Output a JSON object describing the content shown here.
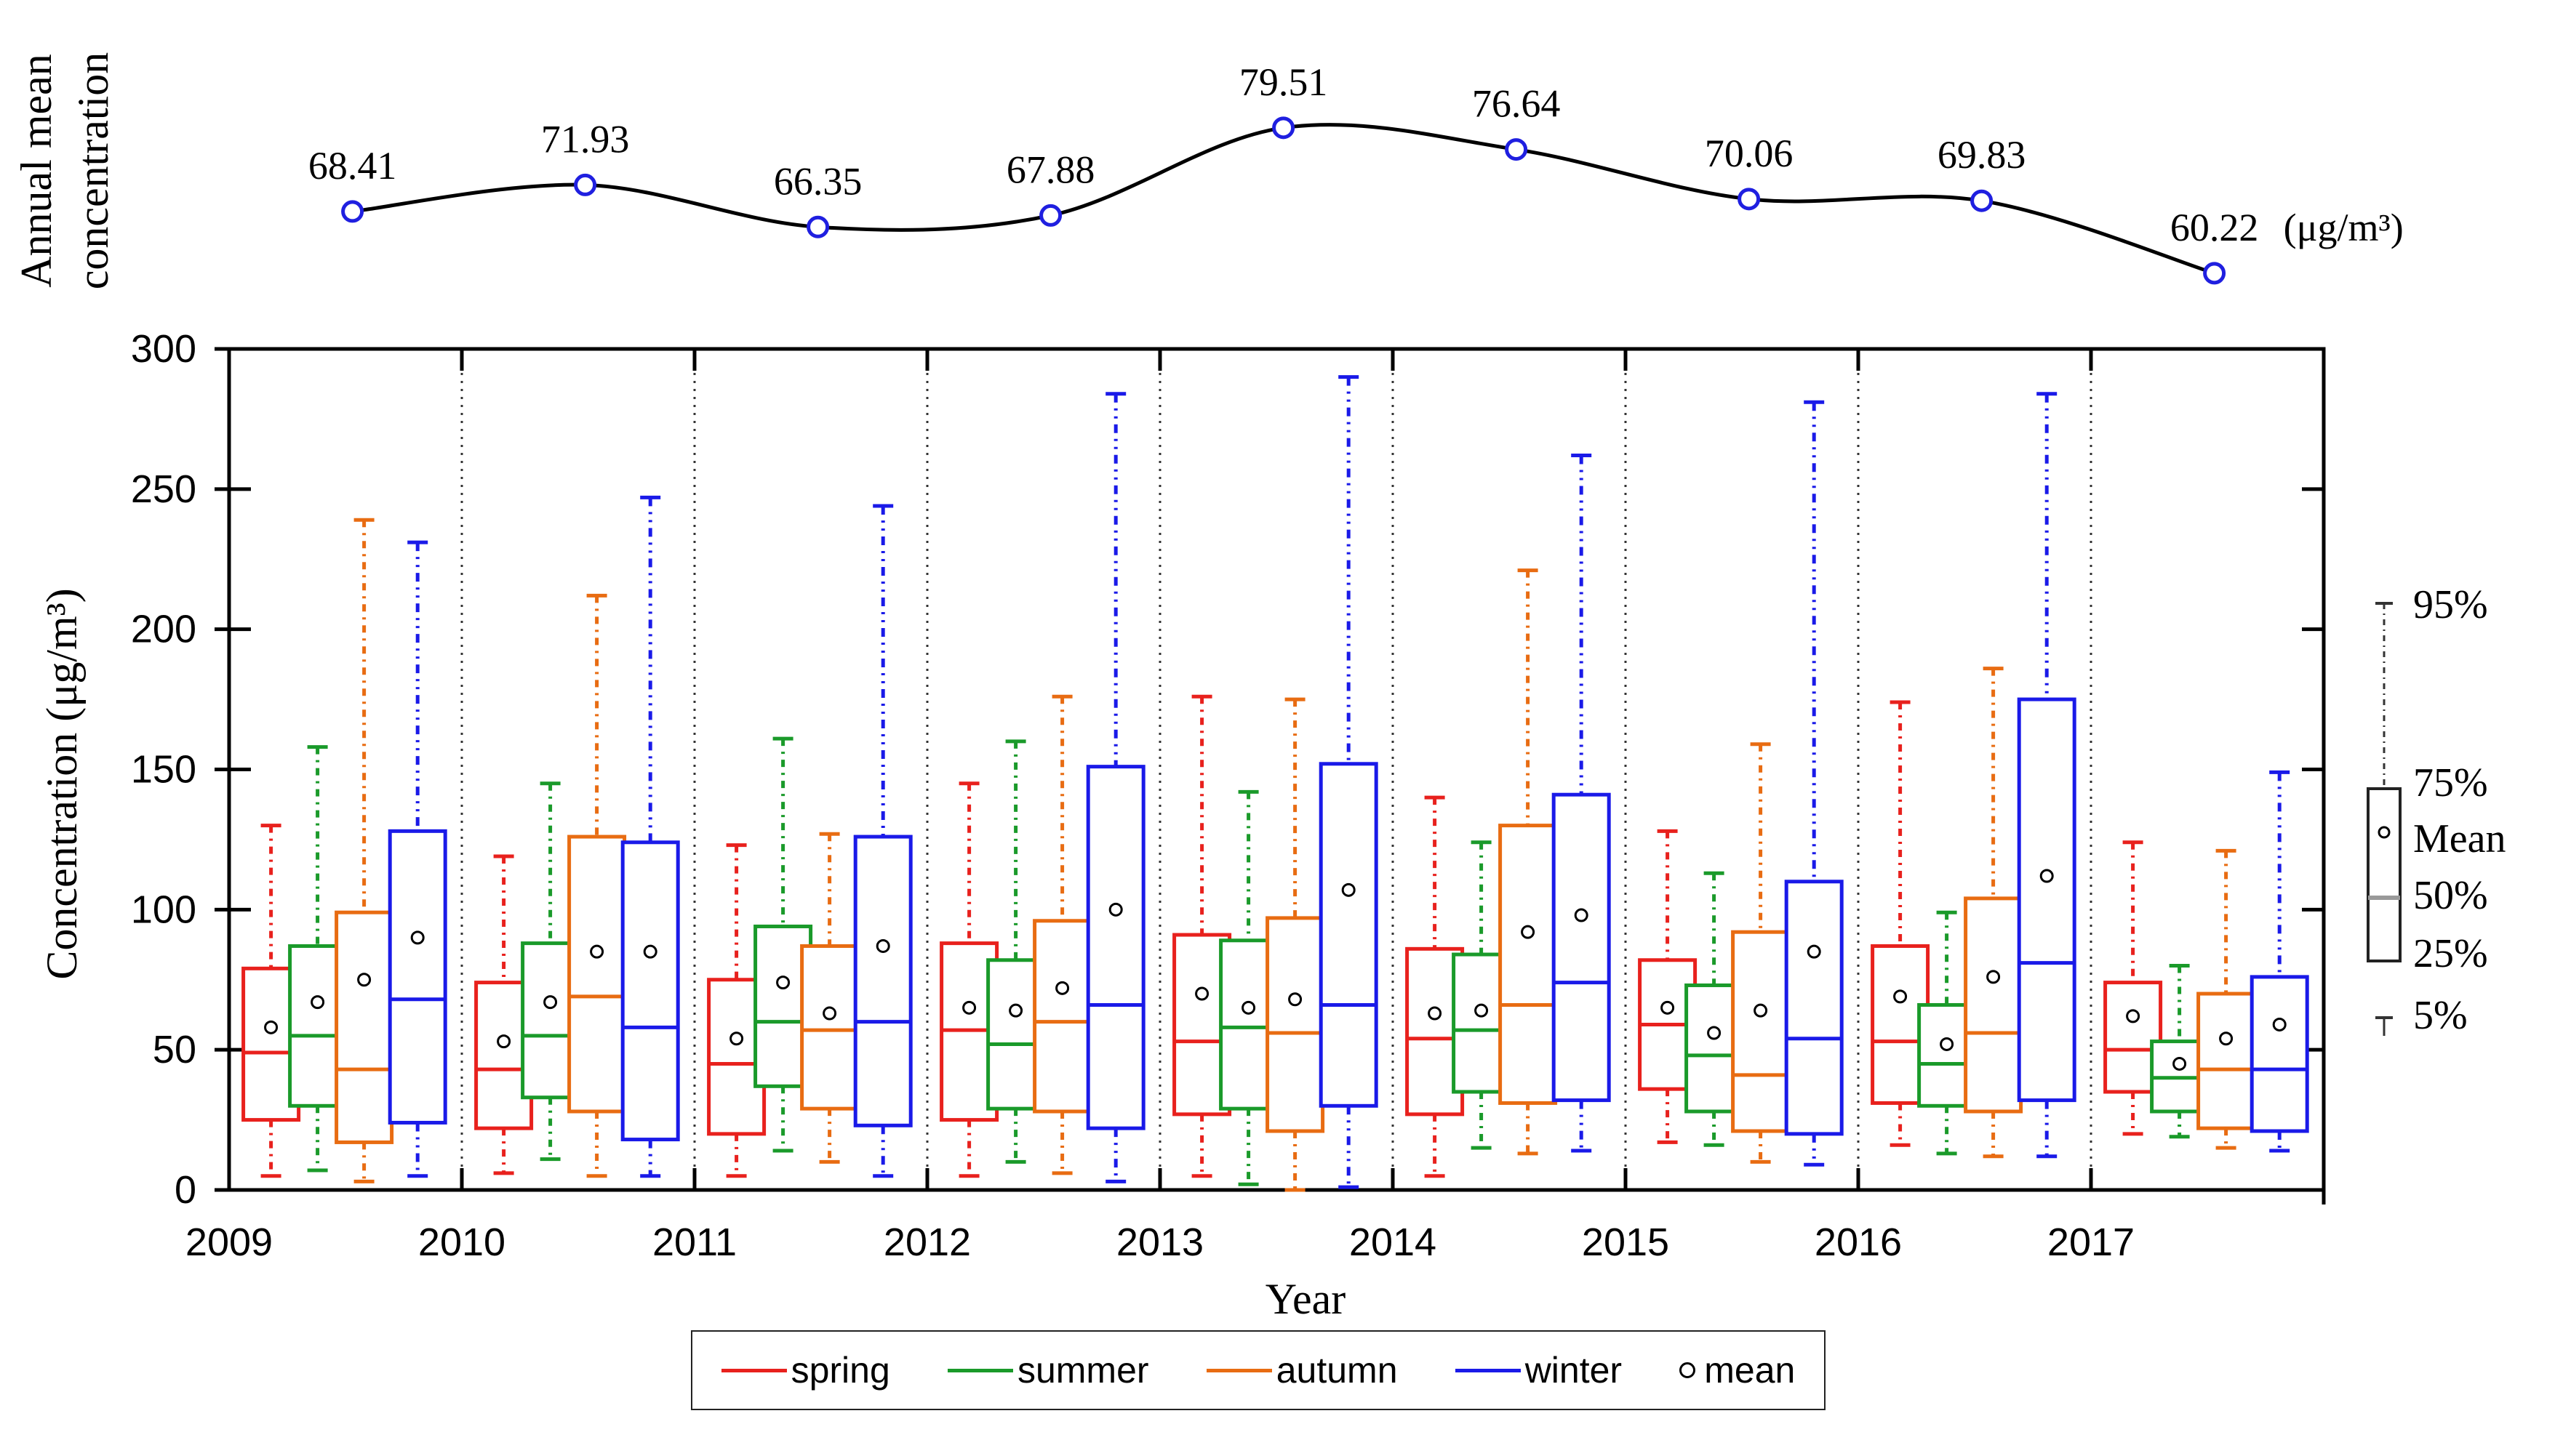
{
  "chart_data": {
    "type": "box",
    "annual_panel": {
      "ylabel": "Annual mean concentration",
      "years": [
        2009,
        2010,
        2011,
        2012,
        2013,
        2014,
        2015,
        2016,
        2017
      ],
      "means": [
        68.41,
        71.93,
        66.35,
        67.88,
        79.51,
        76.64,
        70.06,
        69.83,
        60.22
      ],
      "labels": [
        "68.41",
        "71.93",
        "66.35",
        "67.88",
        "79.51",
        "76.64",
        "70.06",
        "69.83",
        "60.22"
      ],
      "unit_label": "(μg/m³)",
      "line_color": "#000000",
      "marker_color": "#1f1fe0"
    },
    "main_panel": {
      "ylabel": "Concentration (μg/m³)",
      "xlabel": "Year",
      "ylim": [
        0,
        300
      ],
      "yticks": [
        0,
        50,
        100,
        150,
        200,
        250,
        300
      ],
      "ytick_labels": [
        "0",
        "50",
        "100",
        "150",
        "200",
        "250",
        "300"
      ],
      "xlim": [
        2009,
        2018
      ],
      "xticks": [
        2009,
        2010,
        2011,
        2012,
        2013,
        2014,
        2015,
        2016,
        2017
      ],
      "xtick_labels": [
        "2009",
        "2010",
        "2011",
        "2012",
        "2013",
        "2014",
        "2015",
        "2016",
        "2017"
      ],
      "season_positions": [
        0.18,
        0.38,
        0.58,
        0.81
      ]
    },
    "series": [
      {
        "name": "spring",
        "color": "#e8211d",
        "boxes": [
          {
            "p5": 5,
            "q1": 25,
            "median": 49,
            "mean": 58,
            "q3": 79,
            "p95": 130
          },
          {
            "p5": 6,
            "q1": 22,
            "median": 43,
            "mean": 53,
            "q3": 74,
            "p95": 119
          },
          {
            "p5": 5,
            "q1": 20,
            "median": 45,
            "mean": 54,
            "q3": 75,
            "p95": 123
          },
          {
            "p5": 5,
            "q1": 25,
            "median": 57,
            "mean": 65,
            "q3": 88,
            "p95": 145
          },
          {
            "p5": 5,
            "q1": 27,
            "median": 53,
            "mean": 70,
            "q3": 91,
            "p95": 176
          },
          {
            "p5": 5,
            "q1": 27,
            "median": 54,
            "mean": 63,
            "q3": 86,
            "p95": 140
          },
          {
            "p5": 17,
            "q1": 36,
            "median": 59,
            "mean": 65,
            "q3": 82,
            "p95": 128
          },
          {
            "p5": 16,
            "q1": 31,
            "median": 53,
            "mean": 69,
            "q3": 87,
            "p95": 174
          },
          {
            "p5": 20,
            "q1": 35,
            "median": 50,
            "mean": 62,
            "q3": 74,
            "p95": 124
          }
        ]
      },
      {
        "name": "summer",
        "color": "#1a9a2a",
        "boxes": [
          {
            "p5": 7,
            "q1": 30,
            "median": 55,
            "mean": 67,
            "q3": 87,
            "p95": 158
          },
          {
            "p5": 11,
            "q1": 33,
            "median": 55,
            "mean": 67,
            "q3": 88,
            "p95": 145
          },
          {
            "p5": 14,
            "q1": 37,
            "median": 60,
            "mean": 74,
            "q3": 94,
            "p95": 161
          },
          {
            "p5": 10,
            "q1": 29,
            "median": 52,
            "mean": 64,
            "q3": 82,
            "p95": 160
          },
          {
            "p5": 2,
            "q1": 29,
            "median": 58,
            "mean": 65,
            "q3": 89,
            "p95": 142
          },
          {
            "p5": 15,
            "q1": 35,
            "median": 57,
            "mean": 64,
            "q3": 84,
            "p95": 124
          },
          {
            "p5": 16,
            "q1": 28,
            "median": 48,
            "mean": 56,
            "q3": 73,
            "p95": 113
          },
          {
            "p5": 13,
            "q1": 30,
            "median": 45,
            "mean": 52,
            "q3": 66,
            "p95": 99
          },
          {
            "p5": 19,
            "q1": 28,
            "median": 40,
            "mean": 45,
            "q3": 53,
            "p95": 80
          }
        ]
      },
      {
        "name": "autumn",
        "color": "#e86c12",
        "boxes": [
          {
            "p5": 3,
            "q1": 17,
            "median": 43,
            "mean": 75,
            "q3": 99,
            "p95": 239
          },
          {
            "p5": 5,
            "q1": 28,
            "median": 69,
            "mean": 85,
            "q3": 126,
            "p95": 212
          },
          {
            "p5": 10,
            "q1": 29,
            "median": 57,
            "mean": 63,
            "q3": 87,
            "p95": 127
          },
          {
            "p5": 6,
            "q1": 28,
            "median": 60,
            "mean": 72,
            "q3": 96,
            "p95": 176
          },
          {
            "p5": 0,
            "q1": 21,
            "median": 56,
            "mean": 68,
            "q3": 97,
            "p95": 175
          },
          {
            "p5": 13,
            "q1": 31,
            "median": 66,
            "mean": 92,
            "q3": 130,
            "p95": 221
          },
          {
            "p5": 10,
            "q1": 21,
            "median": 41,
            "mean": 64,
            "q3": 92,
            "p95": 159
          },
          {
            "p5": 12,
            "q1": 28,
            "median": 56,
            "mean": 76,
            "q3": 104,
            "p95": 186
          },
          {
            "p5": 15,
            "q1": 22,
            "median": 43,
            "mean": 54,
            "q3": 70,
            "p95": 121
          }
        ]
      },
      {
        "name": "winter",
        "color": "#1a1ae8",
        "boxes": [
          {
            "p5": 5,
            "q1": 24,
            "median": 68,
            "mean": 90,
            "q3": 128,
            "p95": 231
          },
          {
            "p5": 5,
            "q1": 18,
            "median": 58,
            "mean": 85,
            "q3": 124,
            "p95": 247
          },
          {
            "p5": 5,
            "q1": 23,
            "median": 60,
            "mean": 87,
            "q3": 126,
            "p95": 244
          },
          {
            "p5": 3,
            "q1": 22,
            "median": 66,
            "mean": 100,
            "q3": 151,
            "p95": 284
          },
          {
            "p5": 1,
            "q1": 30,
            "median": 66,
            "mean": 107,
            "q3": 152,
            "p95": 290
          },
          {
            "p5": 14,
            "q1": 32,
            "median": 74,
            "mean": 98,
            "q3": 141,
            "p95": 262
          },
          {
            "p5": 9,
            "q1": 20,
            "median": 54,
            "mean": 85,
            "q3": 110,
            "p95": 281
          },
          {
            "p5": 12,
            "q1": 32,
            "median": 81,
            "mean": 112,
            "q3": 175,
            "p95": 284
          },
          {
            "p5": 14,
            "q1": 21,
            "median": 43,
            "mean": 59,
            "q3": 76,
            "p95": 149
          }
        ]
      }
    ],
    "key": {
      "labels": [
        "95%",
        "75%",
        "Mean",
        "50%",
        "25%",
        "5%"
      ]
    },
    "legend": {
      "position": "bottom-center",
      "items": [
        "spring",
        "summer",
        "autumn",
        "winter",
        "mean"
      ]
    }
  }
}
